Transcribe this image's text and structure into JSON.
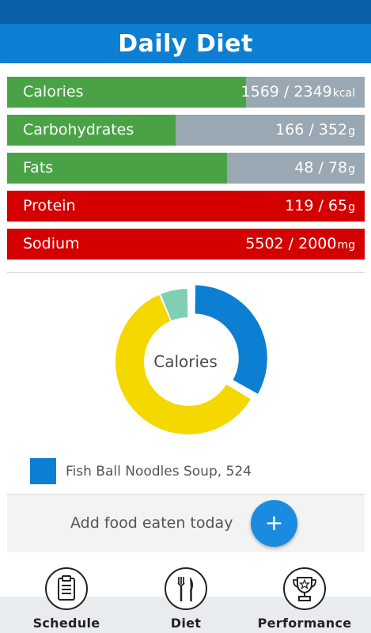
{
  "header": {
    "title": "Daily Diet"
  },
  "colors": {
    "ok": "#49a346",
    "over": "#d40000",
    "remaining": "#9aa8b3",
    "primary": "#0d7fd2"
  },
  "nutrients": [
    {
      "label": "Calories",
      "value": "1569 / 2349",
      "unit": "kcal",
      "consumed": 1569,
      "target": 2349,
      "status": "ok"
    },
    {
      "label": "Carbohydrates",
      "value": "166 / 352",
      "unit": "g",
      "consumed": 166,
      "target": 352,
      "status": "ok"
    },
    {
      "label": "Fats",
      "value": "48 / 78",
      "unit": "g",
      "consumed": 48,
      "target": 78,
      "status": "ok"
    },
    {
      "label": "Protein",
      "value": "119 / 65",
      "unit": "g",
      "consumed": 119,
      "target": 65,
      "status": "over"
    },
    {
      "label": "Sodium",
      "value": "5502 / 2000",
      "unit": "mg",
      "consumed": 5502,
      "target": 2000,
      "status": "over"
    }
  ],
  "chart": {
    "center_label": "Calories",
    "slices": [
      {
        "value": 524,
        "color": "#0d7fd2",
        "exploded": true
      },
      {
        "value": 945,
        "color": "#f5d800",
        "exploded": false
      },
      {
        "value": 100,
        "color": "#80cfb2",
        "exploded": false
      }
    ]
  },
  "legend": {
    "text": "Fish Ball Noodles Soup, 524",
    "color": "#0d7fd2"
  },
  "add_food": {
    "label": "Add food eaten today",
    "button": "+"
  },
  "nav": {
    "schedule": "Schedule",
    "diet": "Diet",
    "performance": "Performance",
    "icons": [
      "clipboard-icon",
      "fork-knife-icon",
      "trophy-icon"
    ]
  }
}
